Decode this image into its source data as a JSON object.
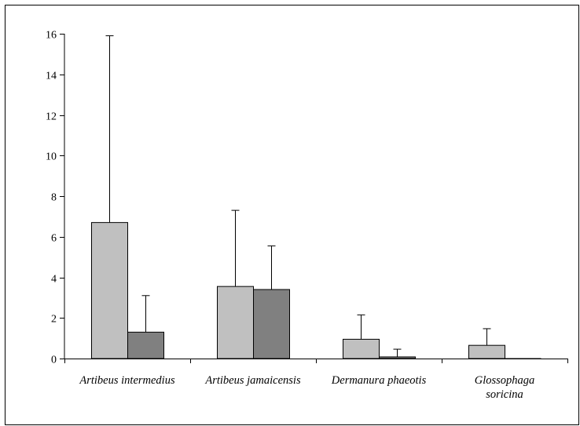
{
  "chart_data": {
    "type": "bar",
    "title": "",
    "xlabel": "",
    "ylabel": "",
    "ylim": [
      0,
      16
    ],
    "yticks": [
      0,
      2,
      4,
      6,
      8,
      10,
      12,
      14,
      16
    ],
    "categories": [
      [
        "Artibeus intermedius"
      ],
      [
        "Artibeus jamaicensis"
      ],
      [
        "Dermanura phaeotis"
      ],
      [
        "Glossophaga",
        "soricina"
      ]
    ],
    "series": [
      {
        "values": [
          6.7,
          3.55,
          0.95,
          0.65
        ],
        "errors": [
          9.2,
          3.75,
          1.2,
          0.82
        ],
        "color": "#c0c0c0"
      },
      {
        "values": [
          1.3,
          3.4,
          0.08,
          0.0
        ],
        "errors": [
          1.8,
          2.15,
          0.38,
          0.0
        ],
        "color": "#808080"
      }
    ],
    "grid": false,
    "legend": "none"
  }
}
